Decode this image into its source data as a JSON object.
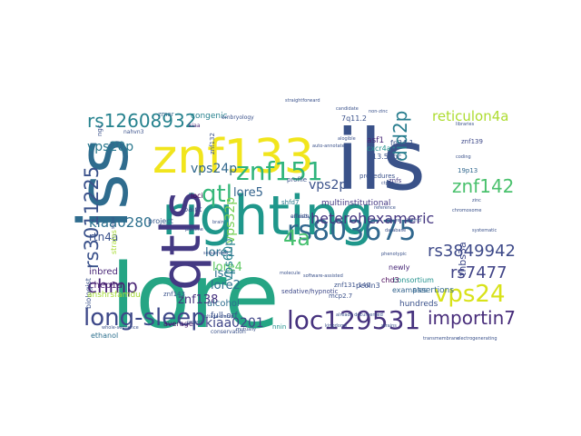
{
  "word_cloud": {
    "words": [
      {
        "text": "lore",
        "color": "#25a584"
      },
      {
        "text": "ils",
        "color": "#3a5289"
      },
      {
        "text": "righting",
        "color": "#1f978b"
      },
      {
        "text": "znf133",
        "color": "#f1e51d"
      },
      {
        "text": "iss",
        "color": "#2f6c8e"
      },
      {
        "text": "qtls",
        "color": "#443983"
      },
      {
        "text": "rs803675",
        "color": "#31688e"
      },
      {
        "text": "znf151",
        "color": "#2fb47c"
      },
      {
        "text": "loc129531",
        "color": "#46327e"
      },
      {
        "text": "long-sleep",
        "color": "#3e4989"
      },
      {
        "text": "vps24",
        "color": "#d8e219"
      },
      {
        "text": "rs12608932",
        "color": "#26828e"
      },
      {
        "text": "rs3011225",
        "color": "#3b528b"
      },
      {
        "text": "importin7",
        "color": "#472c7a"
      },
      {
        "text": "did2p",
        "color": "#287d8e"
      },
      {
        "text": "qtl",
        "color": "#35b779"
      },
      {
        "text": "4a",
        "color": "#46c06f"
      },
      {
        "text": "znf142",
        "color": "#4ac16d"
      },
      {
        "text": "chmp",
        "color": "#482475"
      },
      {
        "text": "rs3849942",
        "color": "#3e4a89"
      },
      {
        "text": "rs7477",
        "color": "#414487"
      },
      {
        "text": "reticulon4a",
        "color": "#addc30"
      },
      {
        "text": "heterohexameric",
        "color": "#453781"
      },
      {
        "text": "kiaa0280",
        "color": "#2d708e"
      },
      {
        "text": "vps24p",
        "color": "#31688e"
      },
      {
        "text": "kiaa0201",
        "color": "#404688"
      },
      {
        "text": "vps20p",
        "color": "#2a788e"
      },
      {
        "text": "vps2p",
        "color": "#3b528b"
      },
      {
        "text": "lore1",
        "color": "#2c728e"
      },
      {
        "text": "lore2",
        "color": "#2d708e"
      },
      {
        "text": "lore4",
        "color": "#5ec962"
      },
      {
        "text": "lore5",
        "color": "#33638d"
      },
      {
        "text": "vps32p",
        "color": "#75d054"
      },
      {
        "text": "vps60p",
        "color": "#26828e"
      },
      {
        "text": "iscr",
        "color": "#2b758e"
      },
      {
        "text": "znf138",
        "color": "#46327e"
      },
      {
        "text": "rtn4a",
        "color": "#3b528b"
      },
      {
        "text": "thbs3a",
        "color": "#3e4989"
      },
      {
        "text": "chep1a",
        "color": "#481f70"
      },
      {
        "text": "inbred",
        "color": "#482677"
      },
      {
        "text": "alcohol",
        "color": "#2e6e8e"
      },
      {
        "text": "full-orf",
        "color": "#3b528b"
      },
      {
        "text": "assertions",
        "color": "#31688e"
      },
      {
        "text": "hundreds",
        "color": "#3b528b"
      },
      {
        "text": "multiinstitutional",
        "color": "#453882"
      },
      {
        "text": "congenic",
        "color": "#26818e"
      },
      {
        "text": "consortium",
        "color": "#21918c"
      },
      {
        "text": "project",
        "color": "#38598c"
      },
      {
        "text": "loci",
        "color": "#440154"
      },
      {
        "text": "paint",
        "color": "#3e4989"
      },
      {
        "text": "average",
        "color": "#481a6c"
      },
      {
        "text": "ethanol",
        "color": "#2d708e"
      },
      {
        "text": "biologist",
        "color": "#3b528b"
      },
      {
        "text": "strains",
        "color": "#a8db34"
      },
      {
        "text": "examples",
        "color": "#33638d"
      },
      {
        "text": "pcoln3",
        "color": "#3b528b"
      },
      {
        "text": "chd3",
        "color": "#440154"
      },
      {
        "text": "newly",
        "color": "#482777"
      },
      {
        "text": "13.5dpc",
        "color": "#3b528b"
      },
      {
        "text": "cxcr4a",
        "color": "#21918c"
      },
      {
        "text": "asf1",
        "color": "#482677"
      },
      {
        "text": "7q11.2",
        "color": "#3b528b"
      },
      {
        "text": "fp34.1",
        "color": "#3b528b"
      },
      {
        "text": "19p13",
        "color": "#31688e"
      },
      {
        "text": "znf139",
        "color": "#3e4989"
      },
      {
        "text": "procedures",
        "color": "#3b528b"
      },
      {
        "text": "sedative/hypnotic",
        "color": "#3e4989"
      },
      {
        "text": "anshrsfamdu",
        "color": "#a5db36"
      },
      {
        "text": "nnin",
        "color": "#21918c"
      },
      {
        "text": "znf131-140",
        "color": "#3b528b"
      },
      {
        "text": "mcp2.7",
        "color": "#3b528b"
      },
      {
        "text": "shfd7",
        "color": "#2a788e"
      },
      {
        "text": "zmar",
        "color": "#31688e"
      },
      {
        "text": "ngc",
        "color": "#3b528b"
      },
      {
        "text": "znfs",
        "color": "#443983"
      },
      {
        "text": "profile",
        "color": "#3b528b"
      },
      {
        "text": "znf143",
        "color": "#3b528b"
      },
      {
        "text": "znf132",
        "color": "#3b528b"
      },
      {
        "text": "kiaa",
        "color": "#482475"
      },
      {
        "text": "nahvn3",
        "color": "#3b528b"
      },
      {
        "text": "embryology",
        "color": "#3b528b"
      },
      {
        "text": "conservation",
        "color": "#3b528b"
      },
      {
        "text": "straightforward",
        "color": "#3b528b"
      },
      {
        "text": "candidate",
        "color": "#3b528b"
      },
      {
        "text": "alogible",
        "color": "#3b528b"
      },
      {
        "text": "sequenced",
        "color": "#3b528b"
      },
      {
        "text": "strains",
        "color": "#3b528b"
      },
      {
        "text": "kingdoms",
        "color": "#3b528b"
      },
      {
        "text": "transmembrane",
        "color": "#3b528b"
      },
      {
        "text": "electrogenerating",
        "color": "#3b528b"
      },
      {
        "text": "already documented",
        "color": "#3b528b"
      },
      {
        "text": "software-assisted",
        "color": "#3b528b"
      },
      {
        "text": "mutually",
        "color": "#3b528b"
      },
      {
        "text": "voltage-clamp",
        "color": "#3b528b"
      },
      {
        "text": "molecule",
        "color": "#3b528b"
      },
      {
        "text": "non-zinc",
        "color": "#3b528b"
      },
      {
        "text": "libraries",
        "color": "#3b528b"
      },
      {
        "text": "coding",
        "color": "#3b528b"
      },
      {
        "text": "pipeline",
        "color": "#3b528b"
      },
      {
        "text": "slope",
        "color": "#3b528b"
      },
      {
        "text": "ctp3a",
        "color": "#3b528b"
      },
      {
        "text": "figure",
        "color": "#3b528b"
      },
      {
        "text": "record",
        "color": "#3b528b"
      },
      {
        "text": "phenotypic",
        "color": "#3b528b"
      },
      {
        "text": "reference",
        "color": "#3b528b"
      },
      {
        "text": "database",
        "color": "#3b528b"
      },
      {
        "text": "whole-sequence",
        "color": "#3b528b"
      },
      {
        "text": "hybrid",
        "color": "#3b528b"
      },
      {
        "text": "chromosome",
        "color": "#3b528b"
      },
      {
        "text": "auto-annotated",
        "color": "#3b528b"
      },
      {
        "text": "zinc",
        "color": "#3b528b"
      },
      {
        "text": "systematic",
        "color": "#3b528b"
      },
      {
        "text": "brain",
        "color": "#3b528b"
      },
      {
        "text": "anxiety",
        "color": "#3b528b"
      },
      {
        "text": "effects",
        "color": "#3b528b"
      }
    ]
  }
}
